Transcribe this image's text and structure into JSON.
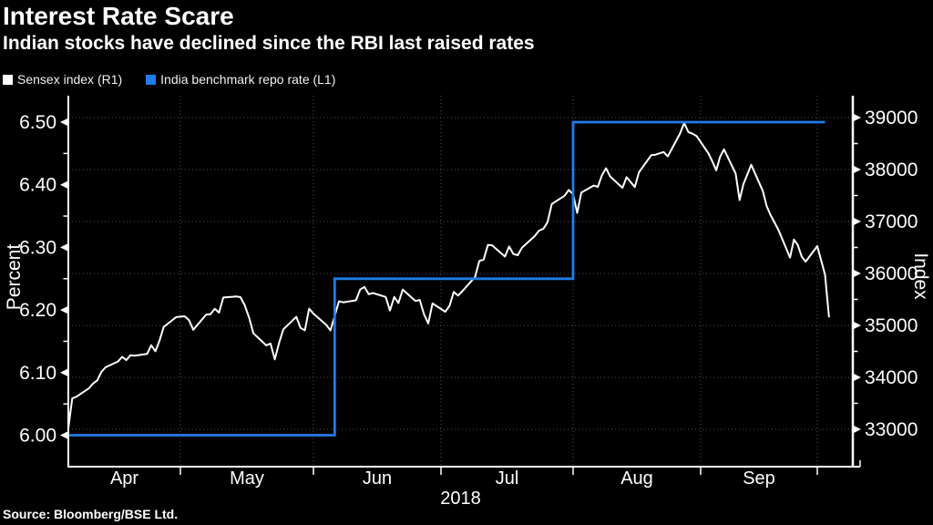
{
  "title": "Interest Rate Scare",
  "subtitle": "Indian stocks have declined since the RBI last raised rates",
  "source": "Source: Bloomberg/BSE Ltd.",
  "colors": {
    "background": "#000000",
    "text": "#ffffff",
    "grid": "#4f4f4f",
    "axis": "#ffffff",
    "sensex_line": "#ffffff",
    "repo_line": "#1f7de8"
  },
  "legend": [
    {
      "label": "Sensex index (R1)",
      "color": "#ffffff"
    },
    {
      "label": "India benchmark repo rate (L1)",
      "color": "#1f7de8"
    }
  ],
  "chart_data": {
    "type": "line",
    "title": "Interest Rate Scare",
    "subtitle": "Indian stocks have declined since the RBI last raised rates",
    "grid": "dotted",
    "legend_position": "top-left",
    "x_axis": {
      "year_label": "2018",
      "tick_labels": [
        "Apr",
        "May",
        "Jun",
        "Jul",
        "Aug",
        "Sep"
      ],
      "range": [
        "2018-04-04",
        "2018-10-04"
      ]
    },
    "left_axis": {
      "label": "Percent",
      "ticks": [
        6.0,
        6.1,
        6.2,
        6.3,
        6.4,
        6.5
      ],
      "minor_step": 0.05,
      "range": [
        6.0,
        6.5
      ]
    },
    "right_axis": {
      "label": "Index",
      "ticks": [
        33000,
        34000,
        35000,
        36000,
        37000,
        38000,
        39000
      ],
      "minor_step": 500,
      "range": [
        33000,
        39000
      ]
    },
    "series": [
      {
        "name": "Sensex index (R1)",
        "axis": "right",
        "style": "line",
        "color": "#ffffff",
        "points": [
          [
            "04-04",
            33019
          ],
          [
            "04-05",
            33597
          ],
          [
            "04-06",
            33627
          ],
          [
            "04-09",
            33788
          ],
          [
            "04-10",
            33880
          ],
          [
            "04-11",
            33940
          ],
          [
            "04-12",
            34101
          ],
          [
            "04-13",
            34193
          ],
          [
            "04-16",
            34305
          ],
          [
            "04-17",
            34395
          ],
          [
            "04-18",
            34332
          ],
          [
            "04-19",
            34427
          ],
          [
            "04-20",
            34416
          ],
          [
            "04-23",
            34451
          ],
          [
            "04-24",
            34617
          ],
          [
            "04-25",
            34501
          ],
          [
            "04-26",
            34714
          ],
          [
            "04-27",
            34970
          ],
          [
            "04-30",
            35160
          ],
          [
            "05-02",
            35176
          ],
          [
            "05-03",
            35103
          ],
          [
            "05-04",
            34915
          ],
          [
            "05-07",
            35208
          ],
          [
            "05-08",
            35216
          ],
          [
            "05-09",
            35319
          ],
          [
            "05-10",
            35246
          ],
          [
            "05-11",
            35536
          ],
          [
            "05-14",
            35556
          ],
          [
            "05-15",
            35544
          ],
          [
            "05-16",
            35388
          ],
          [
            "05-17",
            35149
          ],
          [
            "05-18",
            34848
          ],
          [
            "05-21",
            34616
          ],
          [
            "05-22",
            34651
          ],
          [
            "05-23",
            34345
          ],
          [
            "05-24",
            34663
          ],
          [
            "05-25",
            34925
          ],
          [
            "05-28",
            35165
          ],
          [
            "05-29",
            34949
          ],
          [
            "05-30",
            34906
          ],
          [
            "05-31",
            35322
          ],
          [
            "06-01",
            35227
          ],
          [
            "06-04",
            35011
          ],
          [
            "06-05",
            34903
          ],
          [
            "06-06",
            35178
          ],
          [
            "06-07",
            35463
          ],
          [
            "06-08",
            35443
          ],
          [
            "06-11",
            35483
          ],
          [
            "06-12",
            35692
          ],
          [
            "06-13",
            35739
          ],
          [
            "06-14",
            35600
          ],
          [
            "06-15",
            35622
          ],
          [
            "06-18",
            35548
          ],
          [
            "06-19",
            35286
          ],
          [
            "06-20",
            35547
          ],
          [
            "06-21",
            35432
          ],
          [
            "06-22",
            35690
          ],
          [
            "06-25",
            35470
          ],
          [
            "06-26",
            35490
          ],
          [
            "06-27",
            35217
          ],
          [
            "06-28",
            35037
          ],
          [
            "06-29",
            35423
          ],
          [
            "07-02",
            35264
          ],
          [
            "07-03",
            35378
          ],
          [
            "07-04",
            35645
          ],
          [
            "07-05",
            35574
          ],
          [
            "07-06",
            35658
          ],
          [
            "07-09",
            35934
          ],
          [
            "07-10",
            36240
          ],
          [
            "07-11",
            36266
          ],
          [
            "07-12",
            36548
          ],
          [
            "07-13",
            36542
          ],
          [
            "07-16",
            36324
          ],
          [
            "07-17",
            36520
          ],
          [
            "07-18",
            36373
          ],
          [
            "07-19",
            36351
          ],
          [
            "07-20",
            36496
          ],
          [
            "07-23",
            36719
          ],
          [
            "07-24",
            36825
          ],
          [
            "07-25",
            36858
          ],
          [
            "07-26",
            36985
          ],
          [
            "07-27",
            37337
          ],
          [
            "07-30",
            37494
          ],
          [
            "07-31",
            37607
          ],
          [
            "08-01",
            37522
          ],
          [
            "08-02",
            37165
          ],
          [
            "08-03",
            37556
          ],
          [
            "08-06",
            37692
          ],
          [
            "08-07",
            37666
          ],
          [
            "08-08",
            37888
          ],
          [
            "08-09",
            38024
          ],
          [
            "08-10",
            37869
          ],
          [
            "08-13",
            37645
          ],
          [
            "08-14",
            37852
          ],
          [
            "08-16",
            37663
          ],
          [
            "08-17",
            37948
          ],
          [
            "08-20",
            38278
          ],
          [
            "08-21",
            38286
          ],
          [
            "08-23",
            38337
          ],
          [
            "08-24",
            38252
          ],
          [
            "08-27",
            38694
          ],
          [
            "08-28",
            38897
          ],
          [
            "08-29",
            38723
          ],
          [
            "08-30",
            38690
          ],
          [
            "08-31",
            38645
          ],
          [
            "09-03",
            38313
          ],
          [
            "09-04",
            38158
          ],
          [
            "09-05",
            37986
          ],
          [
            "09-06",
            38243
          ],
          [
            "09-07",
            38390
          ],
          [
            "09-10",
            37922
          ],
          [
            "09-11",
            37413
          ],
          [
            "09-12",
            37718
          ],
          [
            "09-14",
            38091
          ],
          [
            "09-17",
            37585
          ],
          [
            "09-18",
            37291
          ],
          [
            "09-19",
            37121
          ],
          [
            "09-21",
            36841
          ],
          [
            "09-24",
            36305
          ],
          [
            "09-25",
            36652
          ],
          [
            "09-26",
            36542
          ],
          [
            "09-27",
            36325
          ],
          [
            "09-28",
            36227
          ],
          [
            "10-01",
            36526
          ],
          [
            "10-03",
            35976
          ],
          [
            "10-04",
            35169
          ]
        ]
      },
      {
        "name": "India benchmark repo rate (L1)",
        "axis": "left",
        "style": "step",
        "color": "#1f7de8",
        "steps": [
          {
            "from": "04-04",
            "rate": 6.0
          },
          {
            "from": "06-06",
            "rate": 6.25
          },
          {
            "from": "08-01",
            "rate": 6.5
          }
        ],
        "end": "10-03"
      }
    ]
  }
}
